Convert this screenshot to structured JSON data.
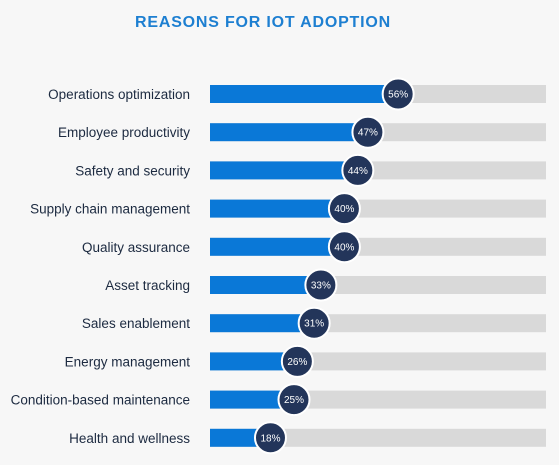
{
  "title": "REASONS FOR IOT ADOPTION",
  "colors": {
    "bar": "#0a78d7",
    "track": "#d9d9d9",
    "bubble": "#23355a",
    "title": "#1d7fd1"
  },
  "chart_data": {
    "type": "bar",
    "orientation": "horizontal",
    "title": "REASONS FOR IOT ADOPTION",
    "xlim": [
      0,
      100
    ],
    "grid": false,
    "categories": [
      "Operations optimization",
      "Employee productivity",
      "Safety and security",
      "Supply chain management",
      "Quality assurance",
      "Asset tracking",
      "Sales enablement",
      "Energy management",
      "Condition-based maintenance",
      "Health and wellness"
    ],
    "values": [
      56,
      47,
      44,
      40,
      40,
      33,
      31,
      26,
      25,
      18
    ],
    "value_labels": [
      "56%",
      "47%",
      "44%",
      "40%",
      "40%",
      "33%",
      "31%",
      "26%",
      "25%",
      "18%"
    ]
  }
}
